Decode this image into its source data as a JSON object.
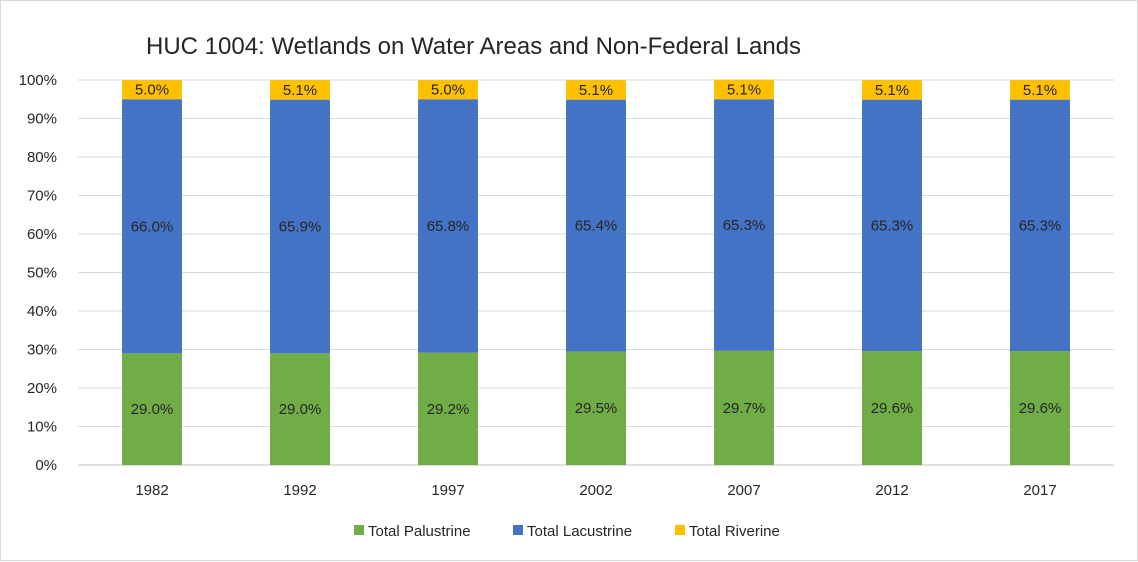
{
  "chart_data": {
    "type": "bar",
    "stacked": true,
    "percent_stacked": true,
    "title": "HUC 1004: Wetlands on Water Areas and Non-Federal Lands",
    "categories": [
      "1982",
      "1992",
      "1997",
      "2002",
      "2007",
      "2012",
      "2017"
    ],
    "series": [
      {
        "name": "Total Palustrine",
        "color": "#70ad47",
        "values": [
          29.0,
          29.0,
          29.2,
          29.5,
          29.7,
          29.6,
          29.6
        ],
        "labels": [
          "29.0%",
          "29.0%",
          "29.2%",
          "29.5%",
          "29.7%",
          "29.6%",
          "29.6%"
        ]
      },
      {
        "name": "Total Lacustrine",
        "color": "#4472c4",
        "values": [
          66.0,
          65.9,
          65.8,
          65.4,
          65.3,
          65.3,
          65.3
        ],
        "labels": [
          "66.0%",
          "65.9%",
          "65.8%",
          "65.4%",
          "65.3%",
          "65.3%",
          "65.3%"
        ]
      },
      {
        "name": "Total Riverine",
        "color": "#ffc000",
        "values": [
          5.0,
          5.1,
          5.0,
          5.1,
          5.1,
          5.1,
          5.1
        ],
        "labels": [
          "5.0%",
          "5.1%",
          "5.0%",
          "5.1%",
          "5.1%",
          "5.1%",
          "5.1%"
        ]
      }
    ],
    "y_ticks": [
      "0%",
      "10%",
      "20%",
      "30%",
      "40%",
      "50%",
      "60%",
      "70%",
      "80%",
      "90%",
      "100%"
    ],
    "ylim": [
      0,
      100
    ],
    "grid": true,
    "legend_position": "bottom"
  }
}
